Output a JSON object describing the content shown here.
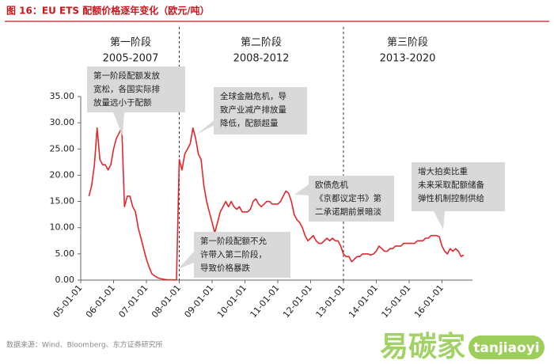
{
  "chart_data": {
    "type": "line",
    "title": "图 16：EU ETS 配额价格逐年变化（欧元/吨）",
    "source": "数据来源：Wind、Bloomberg、东方证券研究所",
    "watermark": [
      "易碳家",
      "tanjiaoyi"
    ],
    "color": "#e3262b",
    "phases": [
      {
        "name": "第一阶段",
        "period": "2005-2007"
      },
      {
        "name": "第二阶段",
        "period": "2008-2012"
      },
      {
        "name": "第三阶段",
        "period": "2013-2020"
      }
    ],
    "dividers": [
      "2008-01",
      "2013-01"
    ],
    "annotations": [
      {
        "lines": [
          "第一阶段配额发放",
          "宽松，各国实际排",
          "放量远小于配额"
        ]
      },
      {
        "lines": [
          "全球金融危机，导",
          "致产业减产排放量",
          "降低，配额超量"
        ]
      },
      {
        "lines": [
          "欧债危机",
          "《京都议定书》第",
          "二承诺期前景暗淡"
        ]
      },
      {
        "lines": [
          "增大拍卖比重",
          "未来采取配额储备",
          "弹性机制控制供给"
        ]
      },
      {
        "lines": [
          "第一阶段配额不允",
          "许带入第二阶段，",
          "导致价格暴跌"
        ]
      }
    ],
    "xlim": [
      "2005-01",
      "2016-11"
    ],
    "xticks": [
      {
        "value": "2005-01",
        "label": "05-01-01"
      },
      {
        "value": "2006-01",
        "label": "06-01-01"
      },
      {
        "value": "2007-01",
        "label": "07-01-01"
      },
      {
        "value": "2008-01",
        "label": "08-01-01"
      },
      {
        "value": "2009-01",
        "label": "09-01-01"
      },
      {
        "value": "2010-01",
        "label": "10-01-01"
      },
      {
        "value": "2011-01",
        "label": "11-01-01"
      },
      {
        "value": "2012-01",
        "label": "12-01-01"
      },
      {
        "value": "2013-01",
        "label": "13-01-01"
      },
      {
        "value": "2014-01",
        "label": "14-01-01"
      },
      {
        "value": "2015-01",
        "label": "15-01-01"
      },
      {
        "value": "2016-01",
        "label": "16-01-01"
      }
    ],
    "ylim": [
      0,
      35
    ],
    "yticks": [
      {
        "value": 0,
        "label": "0.00"
      },
      {
        "value": 5,
        "label": "5.00"
      },
      {
        "value": 10,
        "label": "10.00"
      },
      {
        "value": 15,
        "label": "15.00"
      },
      {
        "value": 20,
        "label": "20.00"
      },
      {
        "value": 25,
        "label": "25.00"
      },
      {
        "value": 30,
        "label": "30.00"
      },
      {
        "value": 35,
        "label": "35.00"
      }
    ],
    "x": [
      "2005-04",
      "2005-05",
      "2005-06",
      "2005-07",
      "2005-08",
      "2005-09",
      "2005-10",
      "2005-11",
      "2005-12",
      "2006-01",
      "2006-02",
      "2006-03",
      "2006-04",
      "2006-05",
      "2006-06",
      "2006-07",
      "2006-08",
      "2006-09",
      "2006-10",
      "2006-11",
      "2006-12",
      "2007-01",
      "2007-02",
      "2007-03",
      "2007-04",
      "2007-05",
      "2007-06",
      "2007-07",
      "2007-08",
      "2007-09",
      "2007-10",
      "2007-11",
      "2007-12",
      "2008-01",
      "2008-02",
      "2008-03",
      "2008-04",
      "2008-05",
      "2008-06",
      "2008-07",
      "2008-08",
      "2008-09",
      "2008-10",
      "2008-11",
      "2008-12",
      "2009-01",
      "2009-02",
      "2009-03",
      "2009-04",
      "2009-05",
      "2009-06",
      "2009-07",
      "2009-08",
      "2009-09",
      "2009-10",
      "2009-11",
      "2009-12",
      "2010-01",
      "2010-02",
      "2010-03",
      "2010-04",
      "2010-05",
      "2010-06",
      "2010-07",
      "2010-08",
      "2010-09",
      "2010-10",
      "2010-11",
      "2010-12",
      "2011-01",
      "2011-02",
      "2011-03",
      "2011-04",
      "2011-05",
      "2011-06",
      "2011-07",
      "2011-08",
      "2011-09",
      "2011-10",
      "2011-11",
      "2011-12",
      "2012-01",
      "2012-02",
      "2012-03",
      "2012-04",
      "2012-05",
      "2012-06",
      "2012-07",
      "2012-08",
      "2012-09",
      "2012-10",
      "2012-11",
      "2012-12",
      "2013-01",
      "2013-02",
      "2013-03",
      "2013-04",
      "2013-05",
      "2013-06",
      "2013-07",
      "2013-08",
      "2013-09",
      "2013-10",
      "2013-11",
      "2013-12",
      "2014-01",
      "2014-02",
      "2014-03",
      "2014-04",
      "2014-05",
      "2014-06",
      "2014-07",
      "2014-08",
      "2014-09",
      "2014-10",
      "2014-11",
      "2014-12",
      "2015-01",
      "2015-02",
      "2015-03",
      "2015-04",
      "2015-05",
      "2015-06",
      "2015-07",
      "2015-08",
      "2015-09",
      "2015-10",
      "2015-11",
      "2015-12",
      "2016-01",
      "2016-02",
      "2016-03",
      "2016-04",
      "2016-05",
      "2016-06",
      "2016-07",
      "2016-08",
      "2016-09"
    ],
    "values": [
      16,
      18,
      22,
      29,
      23,
      22,
      22,
      21,
      22,
      25,
      27,
      28,
      29,
      14,
      16,
      16,
      14,
      13,
      10,
      8,
      6,
      4,
      2.5,
      1.2,
      0.8,
      0.5,
      0.3,
      0.2,
      0.1,
      0.08,
      0.06,
      0.05,
      0.03,
      23,
      21,
      24,
      25,
      26,
      29,
      27,
      24,
      23,
      18,
      15,
      13,
      11,
      9,
      11,
      13,
      14,
      15,
      14,
      15,
      14,
      13.5,
      14,
      13,
      13,
      13,
      13.5,
      15,
      15.5,
      14.5,
      14,
      14.5,
      15,
      15,
      14.5,
      14.5,
      14.5,
      15,
      16,
      17,
      16.5,
      15,
      12.5,
      11.5,
      11,
      10,
      8.5,
      7.5,
      8,
      8.5,
      7.5,
      7,
      7,
      7.5,
      8,
      7.5,
      8,
      7.5,
      7.5,
      6.5,
      5,
      4.5,
      4.5,
      3.5,
      4,
      4.5,
      4.5,
      5,
      5,
      5,
      4.8,
      5,
      5.5,
      6.5,
      6,
      5.5,
      5.5,
      6,
      6,
      6.5,
      6.5,
      6.5,
      7,
      7,
      7,
      7,
      7,
      7.5,
      7.5,
      7.5,
      8,
      8,
      8.5,
      8.5,
      8.5,
      8.3,
      6.5,
      5.5,
      5,
      6,
      5.5,
      6,
      5.5,
      4.5,
      4.8
    ]
  }
}
